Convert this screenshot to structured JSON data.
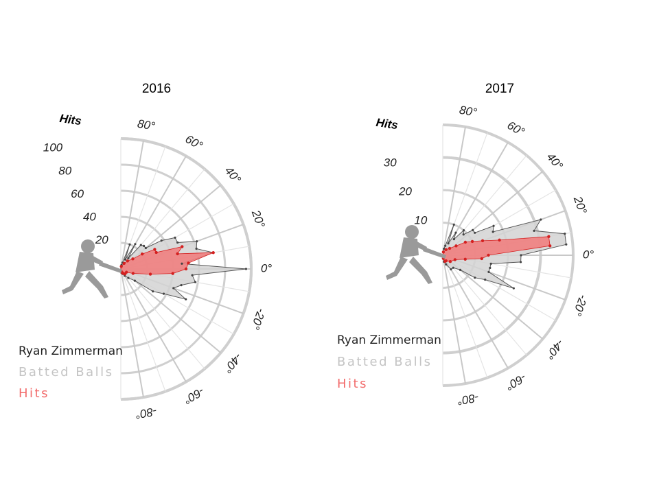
{
  "colors": {
    "batted": "#d4d4d4",
    "batted_stroke": "#555555",
    "hits": "#f07f7f",
    "hits_stroke": "#d42020",
    "grid": "#cfcfcf",
    "legend_balls": "#c4c4c4",
    "legend_hits": "#f26b6b",
    "silhouette": "#9a9a9a"
  },
  "silhouette_icon": "batter-silhouette-icon",
  "chart_data": [
    {
      "type": "polar-area",
      "title": "2016",
      "radial_axis_label": "Hits",
      "radial_ticks": [
        "20",
        "40",
        "60",
        "80",
        "100"
      ],
      "rmax": 100,
      "angle_ticks": [
        "80°",
        "60°",
        "40°",
        "20°",
        "0°",
        "-20°",
        "-40°",
        "-60°",
        "-80°"
      ],
      "legend": {
        "player": "Ryan Zimmerman",
        "batted": "Batted Balls",
        "hits": "Hits"
      },
      "batted_balls": [
        {
          "angle": -80,
          "value": 3
        },
        {
          "angle": -70,
          "value": 4
        },
        {
          "angle": -60,
          "value": 6
        },
        {
          "angle": -50,
          "value": 9
        },
        {
          "angle": -40,
          "value": 14
        },
        {
          "angle": -35,
          "value": 30
        },
        {
          "angle": -30,
          "value": 38
        },
        {
          "angle": -25,
          "value": 55
        },
        {
          "angle": -20,
          "value": 43
        },
        {
          "angle": -15,
          "value": 48
        },
        {
          "angle": -10,
          "value": 58
        },
        {
          "angle": -5,
          "value": 55
        },
        {
          "angle": 0,
          "value": 96
        },
        {
          "angle": 5,
          "value": 47
        },
        {
          "angle": 10,
          "value": 72
        },
        {
          "angle": 15,
          "value": 60
        },
        {
          "angle": 20,
          "value": 62
        },
        {
          "angle": 25,
          "value": 48
        },
        {
          "angle": 30,
          "value": 48
        },
        {
          "angle": 35,
          "value": 38
        },
        {
          "angle": 40,
          "value": 25
        },
        {
          "angle": 45,
          "value": 25
        },
        {
          "angle": 50,
          "value": 24
        },
        {
          "angle": 55,
          "value": 10
        },
        {
          "angle": 60,
          "value": 22
        },
        {
          "angle": 65,
          "value": 8
        },
        {
          "angle": 70,
          "value": 20
        },
        {
          "angle": 75,
          "value": 5
        },
        {
          "angle": 80,
          "value": 3
        }
      ],
      "hits": [
        {
          "angle": -80,
          "value": 2
        },
        {
          "angle": -70,
          "value": 3
        },
        {
          "angle": -60,
          "value": 4
        },
        {
          "angle": -50,
          "value": 5
        },
        {
          "angle": -30,
          "value": 5
        },
        {
          "angle": -20,
          "value": 10
        },
        {
          "angle": -10,
          "value": 23
        },
        {
          "angle": -5,
          "value": 40
        },
        {
          "angle": 0,
          "value": 50
        },
        {
          "angle": 5,
          "value": 52
        },
        {
          "angle": 10,
          "value": 72
        },
        {
          "angle": 15,
          "value": 45
        },
        {
          "angle": 20,
          "value": 50
        },
        {
          "angle": 25,
          "value": 30
        },
        {
          "angle": 30,
          "value": 30
        },
        {
          "angle": 35,
          "value": 20
        },
        {
          "angle": 40,
          "value": 12
        },
        {
          "angle": 50,
          "value": 8
        },
        {
          "angle": 60,
          "value": 5
        },
        {
          "angle": 80,
          "value": 2
        }
      ]
    },
    {
      "type": "polar-area",
      "title": "2017",
      "radial_axis_label": "Hits",
      "radial_ticks": [
        "10",
        "20",
        "30"
      ],
      "rmax": 40,
      "angle_ticks": [
        "80°",
        "60°",
        "40°",
        "20°",
        "0°",
        "-20°",
        "-40°",
        "-60°",
        "-80°"
      ],
      "legend": {
        "player": "Ryan Zimmerman",
        "batted": "Batted Balls",
        "hits": "Hits"
      },
      "batted_balls": [
        {
          "angle": -80,
          "value": 2
        },
        {
          "angle": -70,
          "value": 3
        },
        {
          "angle": -60,
          "value": 5
        },
        {
          "angle": -50,
          "value": 5
        },
        {
          "angle": -40,
          "value": 7
        },
        {
          "angle": -35,
          "value": 12
        },
        {
          "angle": -30,
          "value": 15
        },
        {
          "angle": -25,
          "value": 24
        },
        {
          "angle": -20,
          "value": 15
        },
        {
          "angle": -15,
          "value": 15
        },
        {
          "angle": -10,
          "value": 15
        },
        {
          "angle": -5,
          "value": 24
        },
        {
          "angle": 0,
          "value": 24
        },
        {
          "angle": 5,
          "value": 38
        },
        {
          "angle": 10,
          "value": 38
        },
        {
          "angle": 15,
          "value": 29
        },
        {
          "angle": 20,
          "value": 32
        },
        {
          "angle": 25,
          "value": 17
        },
        {
          "angle": 30,
          "value": 18
        },
        {
          "angle": 35,
          "value": 12
        },
        {
          "angle": 40,
          "value": 12
        },
        {
          "angle": 45,
          "value": 9
        },
        {
          "angle": 50,
          "value": 10
        },
        {
          "angle": 55,
          "value": 6
        },
        {
          "angle": 60,
          "value": 8
        },
        {
          "angle": 65,
          "value": 4
        },
        {
          "angle": 70,
          "value": 10
        },
        {
          "angle": 75,
          "value": 3
        },
        {
          "angle": 80,
          "value": 2
        }
      ],
      "hits": [
        {
          "angle": -80,
          "value": 1
        },
        {
          "angle": -70,
          "value": 2
        },
        {
          "angle": -60,
          "value": 2
        },
        {
          "angle": -40,
          "value": 3
        },
        {
          "angle": -20,
          "value": 4
        },
        {
          "angle": -10,
          "value": 7
        },
        {
          "angle": -5,
          "value": 12
        },
        {
          "angle": 0,
          "value": 14
        },
        {
          "angle": 5,
          "value": 33
        },
        {
          "angle": 10,
          "value": 33
        },
        {
          "angle": 15,
          "value": 18
        },
        {
          "angle": 20,
          "value": 13
        },
        {
          "angle": 25,
          "value": 10
        },
        {
          "angle": 30,
          "value": 8
        },
        {
          "angle": 35,
          "value": 5
        },
        {
          "angle": 45,
          "value": 3
        },
        {
          "angle": 60,
          "value": 2
        },
        {
          "angle": 80,
          "value": 1
        }
      ]
    }
  ]
}
